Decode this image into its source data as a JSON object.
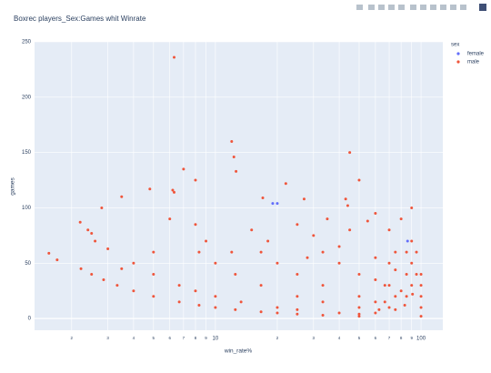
{
  "chart_data": {
    "type": "scatter",
    "title": "Boxrec players_Sex:Games whit Winrate",
    "x_label": "win_rate%",
    "y_label": "games",
    "legend_title": "sex",
    "x_log": true,
    "grid": true,
    "xlim": [
      1.32,
      127.6
    ],
    "ylim": [
      -10.6,
      250
    ],
    "xticks": [
      2,
      3,
      4,
      5,
      6,
      7,
      8,
      9,
      10,
      {
        "value": 20,
        "label": "2"
      },
      {
        "value": 30,
        "label": "3"
      },
      {
        "value": 40,
        "label": "4"
      },
      {
        "value": 50,
        "label": "5"
      },
      {
        "value": 60,
        "label": "6"
      },
      {
        "value": 70,
        "label": "7"
      },
      {
        "value": 80,
        "label": "8"
      },
      {
        "value": 90,
        "label": "9"
      },
      100
    ],
    "yticks": [
      0,
      50,
      100,
      150,
      200,
      250
    ],
    "series": [
      {
        "name": "female",
        "color": "#636efa",
        "x": [
          19,
          20,
          86
        ],
        "values": [
          104,
          104,
          70
        ]
      },
      {
        "name": "male",
        "color": "#ef553b",
        "x": [
          6.3,
          4.8,
          3.5,
          2.8,
          6.2,
          6.3,
          7,
          8,
          12,
          12.3,
          12.6,
          17,
          22,
          27,
          43,
          44,
          45,
          50,
          90,
          1.55,
          1.7,
          2.2,
          2.4,
          2.5,
          2.6,
          3,
          2.22,
          2.5,
          2.86,
          3.33,
          4,
          5,
          6.67,
          8.33,
          10,
          12.5,
          16.67,
          20,
          25,
          33.3,
          50,
          4,
          5,
          6.67,
          8,
          10,
          13.33,
          20,
          25,
          40,
          50,
          8.33,
          10,
          12.5,
          16.67,
          25,
          33.3,
          50,
          62.5,
          16.67,
          20,
          25,
          33.3,
          50,
          66.7,
          83.3,
          33.3,
          40,
          50,
          66.7,
          80,
          90.9,
          100,
          100,
          100,
          100,
          100,
          95,
          95,
          90,
          90,
          90,
          85,
          85,
          85,
          75,
          75,
          75,
          75,
          70,
          70,
          70,
          60,
          60,
          60,
          60,
          15,
          18,
          25,
          30,
          35,
          40,
          45,
          55,
          60,
          70,
          80,
          28,
          12,
          9,
          8,
          5,
          6,
          3.5
        ],
        "values": [
          236,
          117,
          110,
          100,
          116,
          114,
          135,
          125,
          160,
          146,
          133,
          109,
          122,
          108,
          108,
          102,
          150,
          125,
          100,
          59,
          53,
          87,
          80,
          77,
          70,
          63,
          45,
          40,
          35,
          30,
          25,
          20,
          15,
          12,
          10,
          8,
          6,
          5,
          4,
          3,
          2,
          50,
          40,
          30,
          25,
          20,
          15,
          10,
          8,
          5,
          4,
          60,
          50,
          40,
          30,
          20,
          15,
          10,
          8,
          60,
          50,
          40,
          30,
          20,
          15,
          12,
          60,
          50,
          40,
          30,
          25,
          22,
          2,
          10,
          20,
          30,
          40,
          40,
          60,
          30,
          50,
          70,
          20,
          40,
          60,
          8,
          20,
          44,
          60,
          10,
          30,
          50,
          5,
          15,
          35,
          55,
          80,
          70,
          85,
          75,
          90,
          65,
          80,
          88,
          95,
          80,
          90,
          55,
          60,
          70,
          85,
          60,
          90,
          45
        ]
      }
    ]
  }
}
